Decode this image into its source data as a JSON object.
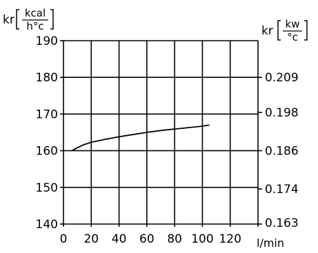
{
  "chart_data": {
    "type": "line",
    "left_axis_label": {
      "prefix": "kr",
      "numerator": "kcal",
      "denominator": "h°c"
    },
    "right_axis_label": {
      "prefix": "kr",
      "numerator": "kw",
      "denominator": "°c"
    },
    "x_unit_label": "l/min",
    "xlim": [
      0,
      140
    ],
    "ylim": [
      140,
      190
    ],
    "x_ticks": [
      "0",
      "20",
      "40",
      "60",
      "80",
      "100",
      "120"
    ],
    "y_ticks": [
      "140",
      "150",
      "160",
      "170",
      "180",
      "190"
    ],
    "right_ticks": [
      {
        "label": "0.163",
        "value": 0.163
      },
      {
        "label": "0.174",
        "value": 0.174
      },
      {
        "label": "0.186",
        "value": 0.186
      },
      {
        "label": "0.198",
        "value": 0.198
      },
      {
        "label": "0.209",
        "value": 0.209
      }
    ],
    "grid": true,
    "series": [
      {
        "x": [
          6,
          10,
          15,
          20,
          30,
          40,
          50,
          60,
          70,
          80,
          90,
          100,
          105
        ],
        "values": [
          160,
          160.8,
          161.7,
          162.3,
          163.1,
          163.8,
          164.4,
          165,
          165.5,
          165.9,
          166.3,
          166.7,
          167
        ]
      }
    ]
  }
}
